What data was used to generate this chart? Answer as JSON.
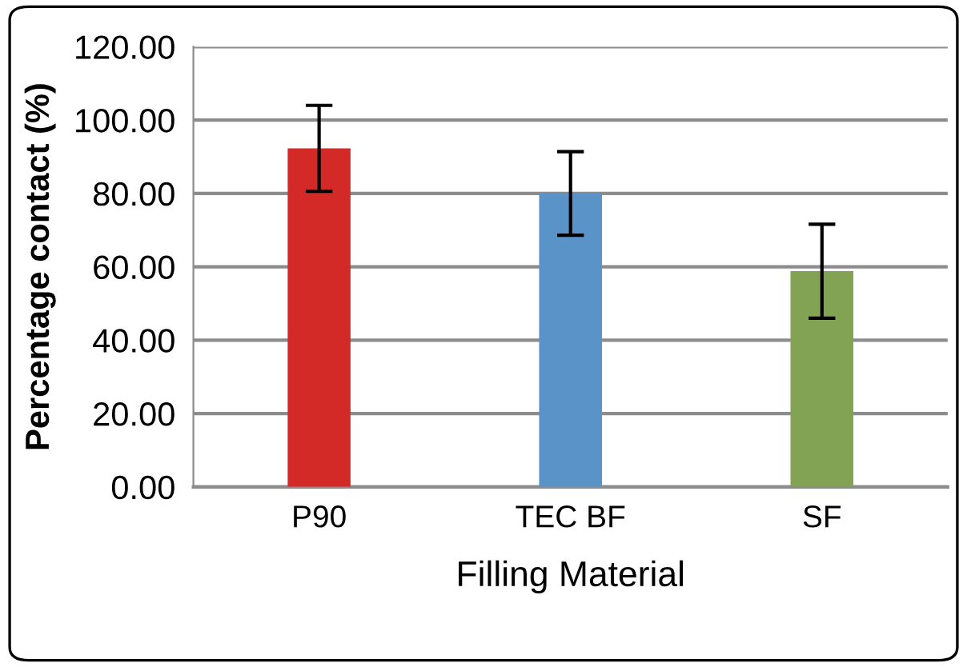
{
  "chart_data": {
    "type": "bar",
    "xlabel": "Filling Material",
    "ylabel": "Percentage contact (%)",
    "categories": [
      "P90",
      "TEC BF",
      "SF"
    ],
    "values": [
      92.3,
      80.0,
      58.8
    ],
    "errors": [
      11.7,
      11.4,
      12.8
    ],
    "colors": [
      "#d42a27",
      "#5993c8",
      "#82a354"
    ],
    "ylim": [
      0,
      120
    ],
    "yticks": [
      {
        "value": 0,
        "label": "0.00"
      },
      {
        "value": 20,
        "label": "20.00"
      },
      {
        "value": 40,
        "label": "40.00"
      },
      {
        "value": 60,
        "label": "60.00"
      },
      {
        "value": 80,
        "label": "80.00"
      },
      {
        "value": 100,
        "label": "100.00"
      },
      {
        "value": 120,
        "label": "120.00"
      }
    ],
    "grid": "y"
  }
}
